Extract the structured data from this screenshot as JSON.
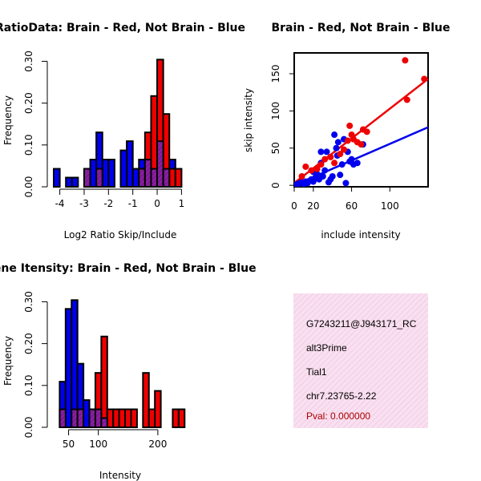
{
  "colors": {
    "red": "#ee0000",
    "blue": "#0000ee",
    "purple": "#8b1fa0",
    "info_bg": "#f8d8ec",
    "pval": "#aa0000"
  },
  "chart_data": [
    {
      "id": "ratio-hist",
      "type": "bar",
      "title": "RatioData: Brain - Red, Not Brain - Blue",
      "xlabel": "Log2 Ratio Skip/Include",
      "ylabel": "Frequency",
      "xlim": [
        -4.25,
        1.25
      ],
      "ylim": [
        0,
        0.32
      ],
      "xticks": [
        "-4",
        "-3",
        "-2",
        "-1",
        "0",
        "1"
      ],
      "xtick_values": [
        -4,
        -3,
        -2,
        -1,
        0,
        1
      ],
      "yticks": [
        "0.00",
        "0.10",
        "0.20",
        "0.30"
      ],
      "ytick_values": [
        0,
        0.1,
        0.2,
        0.3
      ],
      "series": [
        {
          "name": "Not Brain",
          "color": "blue",
          "bins": [
            [
              -4.25,
              -4.0,
              0.043
            ],
            [
              -3.75,
              -3.5,
              0.022
            ],
            [
              -3.5,
              -3.25,
              0.022
            ],
            [
              -3.0,
              -2.75,
              0.043
            ],
            [
              -2.75,
              -2.5,
              0.065
            ],
            [
              -2.5,
              -2.25,
              0.13
            ],
            [
              -2.25,
              -2.0,
              0.065
            ],
            [
              -2.0,
              -1.75,
              0.065
            ],
            [
              -1.5,
              -1.25,
              0.087
            ],
            [
              -1.25,
              -1.0,
              0.109
            ],
            [
              -1.0,
              -0.75,
              0.043
            ],
            [
              -0.75,
              -0.5,
              0.065
            ],
            [
              0.25,
              0.5,
              0.043
            ],
            [
              0.5,
              0.75,
              0.065
            ]
          ]
        },
        {
          "name": "Brain",
          "color": "red",
          "bins": [
            [
              -0.5,
              -0.25,
              0.13
            ],
            [
              -0.25,
              0.0,
              0.217
            ],
            [
              0.0,
              0.25,
              0.304
            ],
            [
              0.25,
              0.5,
              0.174
            ],
            [
              0.5,
              0.75,
              0.043
            ],
            [
              0.75,
              1.0,
              0.043
            ]
          ]
        },
        {
          "name": "Overlap",
          "color": "purple",
          "bins": [
            [
              -3.0,
              -2.75,
              0.043
            ],
            [
              -2.5,
              -2.25,
              0.043
            ],
            [
              -0.75,
              -0.5,
              0.043
            ],
            [
              -0.5,
              -0.25,
              0.065
            ],
            [
              -0.25,
              0.0,
              0.043
            ],
            [
              0.0,
              0.25,
              0.109
            ],
            [
              0.25,
              0.5,
              0.043
            ]
          ]
        }
      ]
    },
    {
      "id": "skip-include-scatter",
      "type": "scatter",
      "title": "Brain - Red, Not Brain - Blue",
      "xlabel": "include intensity",
      "ylabel": "skip intensity",
      "xlim": [
        0,
        140
      ],
      "ylim": [
        -2,
        178
      ],
      "xticks": [
        "0",
        "20",
        "60",
        "100"
      ],
      "xtick_values": [
        0,
        20,
        60,
        100
      ],
      "yticks": [
        "0",
        "50",
        "100",
        "150"
      ],
      "ytick_values": [
        0,
        50,
        100,
        150
      ],
      "series": [
        {
          "name": "Not Brain",
          "color": "blue",
          "fit": [
            [
              0,
              0
            ],
            [
              140,
              78
            ]
          ],
          "points": [
            [
              2,
              1
            ],
            [
              4,
              2
            ],
            [
              6,
              3
            ],
            [
              8,
              4
            ],
            [
              10,
              2
            ],
            [
              12,
              5
            ],
            [
              14,
              3
            ],
            [
              16,
              6
            ],
            [
              18,
              8
            ],
            [
              20,
              5
            ],
            [
              22,
              10
            ],
            [
              24,
              15
            ],
            [
              26,
              8
            ],
            [
              28,
              30
            ],
            [
              30,
              12
            ],
            [
              32,
              20
            ],
            [
              34,
              45
            ],
            [
              36,
              4
            ],
            [
              38,
              8
            ],
            [
              40,
              12
            ],
            [
              42,
              68
            ],
            [
              44,
              50
            ],
            [
              45,
              40
            ],
            [
              46,
              58
            ],
            [
              48,
              14
            ],
            [
              50,
              28
            ],
            [
              52,
              62
            ],
            [
              54,
              3
            ],
            [
              56,
              45
            ],
            [
              58,
              32
            ],
            [
              60,
              35
            ],
            [
              62,
              28
            ],
            [
              66,
              30
            ],
            [
              72,
              55
            ],
            [
              28,
              45
            ],
            [
              20,
              18
            ]
          ]
        },
        {
          "name": "Brain",
          "color": "red",
          "fit": [
            [
              0,
              3
            ],
            [
              140,
              143
            ]
          ],
          "points": [
            [
              8,
              12
            ],
            [
              12,
              25
            ],
            [
              18,
              20
            ],
            [
              24,
              22
            ],
            [
              28,
              28
            ],
            [
              32,
              35
            ],
            [
              38,
              38
            ],
            [
              42,
              30
            ],
            [
              48,
              42
            ],
            [
              52,
              48
            ],
            [
              56,
              60
            ],
            [
              58,
              80
            ],
            [
              60,
              68
            ],
            [
              62,
              62
            ],
            [
              66,
              58
            ],
            [
              70,
              55
            ],
            [
              72,
              75
            ],
            [
              76,
              72
            ],
            [
              116,
              168
            ],
            [
              118,
              115
            ],
            [
              136,
              143
            ]
          ]
        }
      ]
    },
    {
      "id": "intensity-hist",
      "type": "bar",
      "title": "Gene Itensity: Brain - Red, Not Brain - Blue",
      "xlabel": "Intensity",
      "ylabel": "Frequency",
      "xlim": [
        25,
        250
      ],
      "ylim": [
        0,
        0.32
      ],
      "xticks": [
        "50",
        "100",
        "200"
      ],
      "xtick_values": [
        50,
        100,
        200
      ],
      "yticks": [
        "0.00",
        "0.10",
        "0.20",
        "0.30"
      ],
      "ytick_values": [
        0,
        0.1,
        0.2,
        0.3
      ],
      "series": [
        {
          "name": "Not Brain",
          "color": "blue",
          "bins": [
            [
              35,
              45,
              0.109
            ],
            [
              45,
              55,
              0.283
            ],
            [
              55,
              65,
              0.304
            ],
            [
              65,
              75,
              0.152
            ],
            [
              75,
              85,
              0.065
            ],
            [
              85,
              95,
              0.043
            ],
            [
              95,
              105,
              0.043
            ],
            [
              105,
              115,
              0.022
            ]
          ]
        },
        {
          "name": "Brain",
          "color": "red",
          "bins": [
            [
              85,
              95,
              0.043
            ],
            [
              95,
              105,
              0.13
            ],
            [
              105,
              115,
              0.217
            ],
            [
              115,
              125,
              0.043
            ],
            [
              125,
              135,
              0.043
            ],
            [
              135,
              145,
              0.043
            ],
            [
              145,
              155,
              0.043
            ],
            [
              155,
              165,
              0.043
            ],
            [
              175,
              185,
              0.13
            ],
            [
              185,
              195,
              0.043
            ],
            [
              195,
              205,
              0.087
            ],
            [
              225,
              235,
              0.043
            ],
            [
              235,
              245,
              0.043
            ]
          ]
        },
        {
          "name": "Overlap",
          "color": "purple",
          "bins": [
            [
              35,
              45,
              0.043
            ],
            [
              55,
              65,
              0.043
            ],
            [
              65,
              75,
              0.043
            ],
            [
              85,
              95,
              0.043
            ],
            [
              95,
              105,
              0.043
            ],
            [
              105,
              115,
              0.022
            ]
          ]
        }
      ]
    }
  ],
  "info_panel": {
    "lines": [
      "G7243211@J943171_RC",
      "alt3Prime",
      "Tial1",
      "chr7.23765-2.22"
    ],
    "pval": "Pval: 0.000000"
  }
}
